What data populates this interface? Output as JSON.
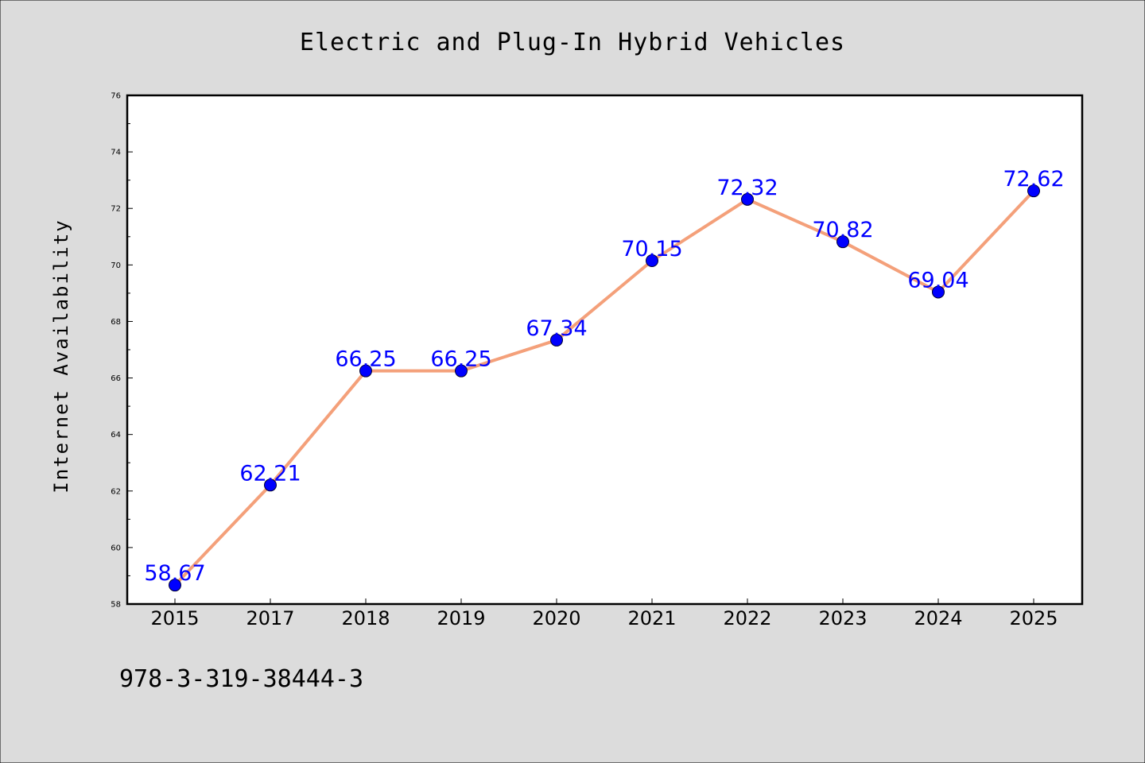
{
  "chart_data": {
    "type": "line",
    "title": "Electric and Plug-In Hybrid Vehicles",
    "xlabel": "",
    "ylabel": "Internet Availability",
    "categories": [
      "2015",
      "2017",
      "2018",
      "2019",
      "2020",
      "2021",
      "2022",
      "2023",
      "2024",
      "2025"
    ],
    "series": [
      {
        "values": [
          58.67,
          62.21,
          66.25,
          66.25,
          67.34,
          70.15,
          72.32,
          70.82,
          69.04,
          72.62
        ],
        "data_labels": [
          "58.67",
          "62.21",
          "66.25",
          "66.25",
          "67.34",
          "70.15",
          "72.32",
          "70.82",
          "69.04",
          "72.62"
        ],
        "line_color": "#f4a07a",
        "marker_color": "#0000ff",
        "label_color": "#0000ff"
      }
    ],
    "ylim": [
      58,
      76
    ],
    "yticks": [
      "58",
      "60",
      "62",
      "64",
      "66",
      "68",
      "70",
      "72",
      "74",
      "76"
    ],
    "grid": false,
    "legend": "none"
  },
  "footnote": "978-3-319-38444-3",
  "colors": {
    "background": "#dcdcdc",
    "plot_background": "#ffffff",
    "axis": "#000000"
  }
}
